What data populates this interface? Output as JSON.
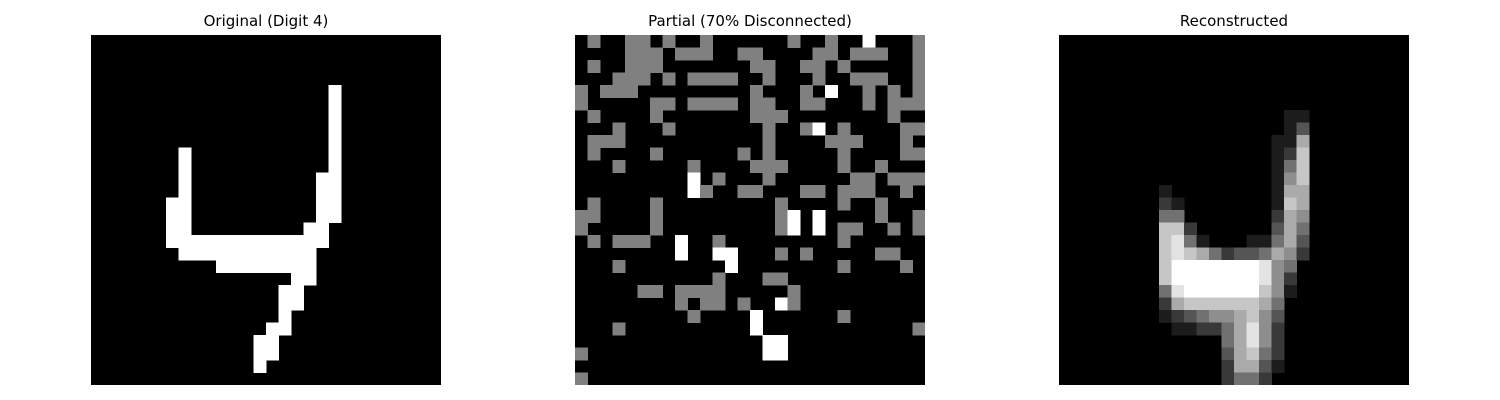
{
  "panels": [
    {
      "title": "Original (Digit 4)",
      "colors": {
        "0": "#000000",
        "1": "#ffffff"
      },
      "grid": [
        "0000000000000000000000000000",
        "0000000000000000000000000000",
        "0000000000000000000000000000",
        "0000000000000000000000000000",
        "0000000000000000000100000000",
        "0000000000000000000100000000",
        "0000000000000000000100000000",
        "0000000000000000000100000000",
        "0000000000000000000100000000",
        "0000000100000000000100000000",
        "0000000100000000000100000000",
        "0000000100000000001100000000",
        "0000000100000000001100000000",
        "0000001100000000001100000000",
        "0000001100000000001100000000",
        "0000001100000000011000000000",
        "0000001111111111111000000000",
        "0000000111111111110000000000",
        "0000000000111111110000000000",
        "0000000000000000110000000000",
        "0000000000000001100000000000",
        "0000000000000001100000000000",
        "0000000000000001000000000000",
        "0000000000000011000000000000",
        "0000000000000110000000000000",
        "0000000000000110000000000000",
        "0000000000000100000000000000",
        "0000000000000000000000000000"
      ]
    },
    {
      "title": "Partial (70% Disconnected)",
      "colors": {
        "0": "#000000",
        "1": "#ffffff",
        "2": "#808080"
      },
      "grid": [
        "0200220200200000020020010002",
        "0000222022200220000220222002",
        "0200222000000022002202000002",
        "0002220202222002000200222002",
        "2022200000000020002010020202",
        "2000002202222022002200020222",
        "0200002000000022200000000200",
        "0002000200000002002102000022",
        "0222000000000002000022200020",
        "0200002000000202000002000022",
        "0002000002000022200002002000",
        "0000000001020002000000220222",
        "0000000001200220002202220020",
        "0200002000000000200002002000",
        "2200002000000000210100002002",
        "2000002000000000210102200202",
        "0202220010020000000002000000",
        "0000000010011000202000002200",
        "0002000000001000000002000020",
        "0000000000020002200000000000",
        "0000022022220000020000000000",
        "0000000020220200120000000000",
        "0000000002000010000002000000",
        "0002000000000010000000000002",
        "0000000000000001100000000000",
        "2000000000000001100000000000",
        "0000000000000000000000000000",
        "2000000000000000000000000000"
      ]
    },
    {
      "title": "Reconstructed",
      "levels": [
        "0000000000000000000000000000",
        "0000000000000000000000000000",
        "0000000000000000000000000000",
        "0000000000000000000000000000",
        "0000000000000000000000000000",
        "0000000000000000000000000000",
        "0000000000000000001100000000",
        "0000000000000000001300000000",
        "0000000000000000011600000000",
        "0000000000000000012700000000",
        "0000000000000000014700000000",
        "0000000000000000015700000000",
        "0000000010000000016600000000",
        "0000000021000000017600000000",
        "0000000044000000026500000000",
        "0000000077200000036400000000",
        "0000000078410001146300000000",
        "0000000078764233465200000000",
        "0000000079999999854000000000",
        "0000000079999999852000000000",
        "0000000048999999751000000000",
        "0000000026777777640000000000",
        "0000000012345567530000000000",
        "0000000001122468520000000000",
        "0000000000000468520000000000",
        "0000000000000367420000000000",
        "0000000000000266310000000000",
        "0000000000000244200000000000"
      ]
    }
  ]
}
